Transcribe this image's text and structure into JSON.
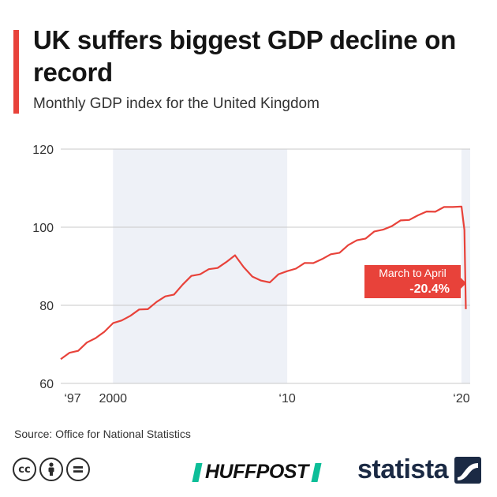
{
  "header": {
    "title": "UK suffers biggest GDP decline on record",
    "subtitle": "Monthly GDP index for the United Kingdom"
  },
  "footer": {
    "source": "Source: Office for National Statistics",
    "license_icons": [
      "cc-icon",
      "by-icon",
      "nd-icon"
    ],
    "huffpost": "HUFFPOST",
    "statista": "statista"
  },
  "colors": {
    "accent": "#e8423a",
    "line": "#e8423a",
    "shade": "#eef1f7",
    "grid": "#c9c9c9",
    "huffpost_accent": "#0dbe98",
    "statista_navy": "#1b2a44"
  },
  "chart_data": {
    "type": "line",
    "title": "UK suffers biggest GDP decline on record",
    "subtitle": "Monthly GDP index for the United Kingdom",
    "xlabel": "",
    "ylabel": "",
    "ylim": [
      60,
      120
    ],
    "xlim": [
      1997,
      2020.5
    ],
    "yticks": [
      60,
      80,
      100,
      120
    ],
    "xticks": [
      {
        "value": 1997,
        "label": "‘97"
      },
      {
        "value": 2000,
        "label": "2000"
      },
      {
        "value": 2010,
        "label": "‘10"
      },
      {
        "value": 2020,
        "label": "‘20"
      }
    ],
    "grid": "horizontal",
    "shaded_ranges": [
      [
        2000,
        2010
      ],
      [
        2020,
        2020.5
      ]
    ],
    "series": [
      {
        "x": [
          1997.0,
          1997.5,
          1998.0,
          1998.5,
          1999.0,
          1999.5,
          2000.0,
          2000.5,
          2001.0,
          2001.5,
          2002.0,
          2002.5,
          2003.0,
          2003.5,
          2004.0,
          2004.5,
          2005.0,
          2005.5,
          2006.0,
          2006.5,
          2007.0,
          2007.5,
          2008.0,
          2008.5,
          2009.0,
          2009.5,
          2010.0,
          2010.5,
          2011.0,
          2011.5,
          2012.0,
          2012.5,
          2013.0,
          2013.5,
          2014.0,
          2014.5,
          2015.0,
          2015.5,
          2016.0,
          2016.5,
          2017.0,
          2017.5,
          2018.0,
          2018.5,
          2019.0,
          2019.5,
          2020.0,
          2020.17,
          2020.25
        ],
        "values": [
          66.2,
          67.5,
          68.8,
          70.2,
          71.5,
          73.6,
          75.0,
          76.3,
          77.5,
          78.5,
          79.4,
          80.8,
          82.0,
          83.2,
          85.0,
          87.5,
          88.3,
          88.8,
          89.8,
          91.2,
          92.4,
          90.2,
          87.2,
          86.1,
          86.3,
          87.6,
          88.8,
          89.7,
          90.4,
          91.1,
          91.9,
          92.7,
          93.9,
          95.2,
          96.5,
          97.5,
          98.5,
          99.5,
          100.5,
          101.3,
          102.2,
          103.0,
          103.7,
          104.4,
          104.9,
          105.1,
          105.3,
          99.3,
          79.0
        ]
      }
    ],
    "annotations": [
      {
        "text": "March to April",
        "value_text": "-20.4%",
        "anchor_x": 2020.25
      }
    ]
  }
}
